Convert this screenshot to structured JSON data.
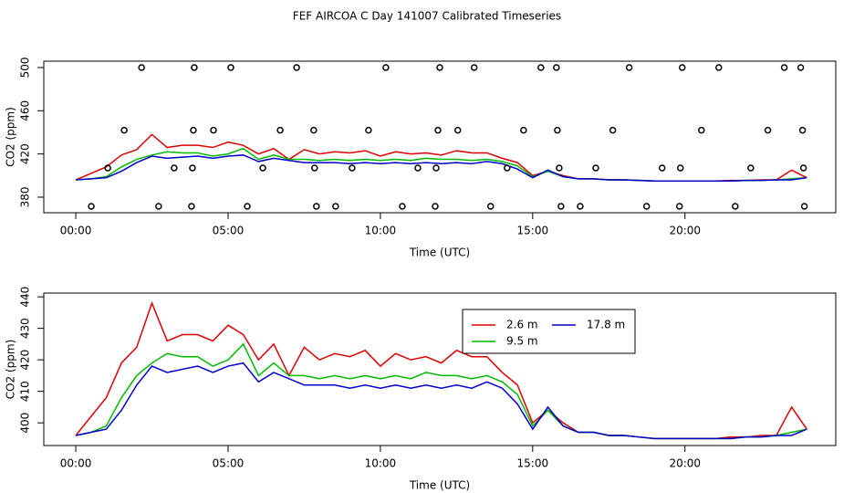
{
  "chart_data": [
    {
      "type": "line",
      "title": "FEF AIRCOA C  Day 141007  Calibrated Timeseries",
      "xlabel": "Time (UTC)",
      "ylabel": "CO2 (ppm)",
      "x": [
        0,
        0.5,
        1,
        1.5,
        2,
        2.5,
        3,
        3.5,
        4,
        4.5,
        5,
        5.5,
        6,
        6.5,
        7,
        7.5,
        8,
        8.5,
        9,
        9.5,
        10,
        10.5,
        11,
        11.5,
        12,
        12.5,
        13,
        13.5,
        14,
        14.5,
        15,
        15.5,
        16,
        16.5,
        17,
        17.5,
        18,
        18.5,
        19,
        19.5,
        20,
        20.5,
        21,
        21.5,
        22,
        22.5,
        23,
        23.5,
        24
      ],
      "series": [
        {
          "color": "#dd0000",
          "values": [
            396,
            402,
            408,
            419,
            424,
            438,
            426,
            428,
            428,
            426,
            431,
            428,
            420,
            425,
            415,
            424,
            420,
            422,
            421,
            423,
            418,
            422,
            420,
            421,
            419,
            423,
            421,
            421,
            416,
            412,
            400,
            404,
            400,
            397,
            397,
            396,
            396,
            395.5,
            395,
            395,
            395,
            395,
            395,
            395.5,
            395.5,
            396,
            396,
            405,
            398
          ]
        },
        {
          "color": "#00bb00",
          "values": [
            396,
            397,
            399,
            408,
            415,
            419,
            422,
            421,
            421,
            418,
            420,
            425,
            415,
            419,
            415,
            415,
            414,
            415,
            414,
            415,
            414,
            415,
            414,
            416,
            415,
            415,
            414,
            415,
            413,
            409,
            399,
            404,
            399,
            397,
            397,
            396,
            396,
            395.5,
            395,
            395,
            395,
            395,
            395,
            395,
            395.5,
            395.5,
            396,
            397,
            398
          ]
        },
        {
          "color": "#0000cc",
          "values": [
            396,
            397,
            398,
            404,
            412,
            418,
            416,
            417,
            418,
            416,
            418,
            419,
            413,
            416,
            414,
            412,
            412,
            412,
            411,
            412,
            411,
            412,
            411,
            412,
            411,
            412,
            411,
            413,
            411,
            406,
            398,
            405,
            399,
            397,
            397,
            396,
            396,
            395.5,
            395,
            395,
            395,
            395,
            395,
            395,
            395.5,
            395.5,
            396,
            396,
            398
          ]
        }
      ],
      "scatter": {
        "x": [
          2.16,
          3.89,
          5.09,
          7.25,
          10.18,
          11.95,
          13.08,
          15.27,
          15.78,
          18.17,
          19.91,
          21.11,
          23.26,
          23.8,
          1.59,
          3.86,
          4.52,
          6.71,
          7.81,
          9.61,
          11.89,
          12.54,
          14.7,
          15.81,
          17.63,
          20.54,
          22.72,
          23.86,
          1.05,
          3.23,
          3.83,
          6.14,
          7.84,
          9.07,
          11.23,
          11.83,
          14.16,
          15.87,
          17.07,
          19.25,
          19.85,
          22.16,
          23.89,
          0.51,
          2.72,
          3.8,
          5.63,
          7.9,
          8.53,
          10.72,
          11.8,
          13.62,
          15.93,
          16.56,
          18.74,
          19.82,
          21.65,
          23.92
        ],
        "values": [
          500,
          500,
          500,
          500,
          500,
          500,
          500,
          500,
          500,
          500,
          500,
          500,
          500,
          500,
          442,
          442,
          442,
          442,
          442,
          442,
          442,
          442,
          442,
          442,
          442,
          442,
          442,
          442,
          407,
          407,
          407,
          407,
          407,
          407,
          407,
          407,
          407,
          407,
          407,
          407,
          407,
          407,
          407,
          371.5,
          371.5,
          371.5,
          371.5,
          371.5,
          371.5,
          371.5,
          371.5,
          371.5,
          371.5,
          371.5,
          371.5,
          371.5,
          371.5,
          371.5
        ]
      },
      "xlim": [
        -1.05,
        24.95
      ],
      "xticks": [
        {
          "value": 0,
          "label": "00:00"
        },
        {
          "value": 5,
          "label": "05:00"
        },
        {
          "value": 10,
          "label": "10:00"
        },
        {
          "value": 15,
          "label": "15:00"
        },
        {
          "value": 20,
          "label": "20:00"
        }
      ],
      "ylim": [
        365.6,
        505.9
      ],
      "yticks": [
        380,
        420,
        460,
        500
      ]
    },
    {
      "type": "line",
      "xlabel": "Time (UTC)",
      "ylabel": "CO2 (ppm)",
      "legend": "top-center",
      "x": [
        0,
        0.5,
        1,
        1.5,
        2,
        2.5,
        3,
        3.5,
        4,
        4.5,
        5,
        5.5,
        6,
        6.5,
        7,
        7.5,
        8,
        8.5,
        9,
        9.5,
        10,
        10.5,
        11,
        11.5,
        12,
        12.5,
        13,
        13.5,
        14,
        14.5,
        15,
        15.5,
        16,
        16.5,
        17,
        17.5,
        18,
        18.5,
        19,
        19.5,
        20,
        20.5,
        21,
        21.5,
        22,
        22.5,
        23,
        23.5,
        24
      ],
      "series": [
        {
          "name": "2.6 m",
          "color": "#dd0000",
          "values": [
            396,
            402,
            408,
            419,
            424,
            438,
            426,
            428,
            428,
            426,
            431,
            428,
            420,
            425,
            415,
            424,
            420,
            422,
            421,
            423,
            418,
            422,
            420,
            421,
            419,
            423,
            421,
            421,
            416,
            412,
            400,
            404,
            400,
            397,
            397,
            396,
            396,
            395.5,
            395,
            395,
            395,
            395,
            395,
            395.5,
            395.5,
            396,
            396,
            405,
            398
          ]
        },
        {
          "name": "9.5 m",
          "color": "#00bb00",
          "values": [
            396,
            397,
            399,
            408,
            415,
            419,
            422,
            421,
            421,
            418,
            420,
            425,
            415,
            419,
            415,
            415,
            414,
            415,
            414,
            415,
            414,
            415,
            414,
            416,
            415,
            415,
            414,
            415,
            413,
            409,
            399,
            404,
            399,
            397,
            397,
            396,
            396,
            395.5,
            395,
            395,
            395,
            395,
            395,
            395,
            395.5,
            395.5,
            396,
            397,
            398
          ]
        },
        {
          "name": "17.8 m",
          "color": "#0000cc",
          "values": [
            396,
            397,
            398,
            404,
            412,
            418,
            416,
            417,
            418,
            416,
            418,
            419,
            413,
            416,
            414,
            412,
            412,
            412,
            411,
            412,
            411,
            412,
            411,
            412,
            411,
            412,
            411,
            413,
            411,
            406,
            398,
            405,
            399,
            397,
            397,
            396,
            396,
            395.5,
            395,
            395,
            395,
            395,
            395,
            395,
            395.5,
            395.5,
            396,
            396,
            398
          ]
        }
      ],
      "xlim": [
        -1.05,
        24.95
      ],
      "xticks": [
        {
          "value": 0,
          "label": "00:00"
        },
        {
          "value": 5,
          "label": "05:00"
        },
        {
          "value": 10,
          "label": "10:00"
        },
        {
          "value": 15,
          "label": "15:00"
        },
        {
          "value": 20,
          "label": "20:00"
        }
      ],
      "ylim": [
        392.8,
        441.2
      ],
      "yticks": [
        400,
        410,
        420,
        430,
        440
      ]
    }
  ]
}
